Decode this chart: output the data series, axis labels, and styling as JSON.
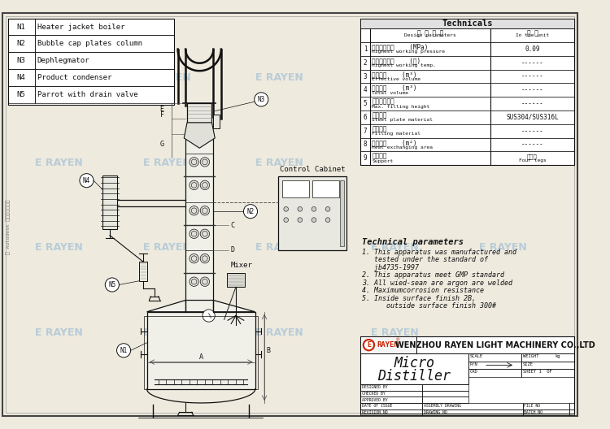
{
  "bg_color": "#eeeade",
  "line_color": "#111111",
  "wm_color": "#b8ccd8",
  "legend_items": [
    [
      "N1",
      "Heater jacket boiler"
    ],
    [
      "N2",
      "Bubble cap plates column"
    ],
    [
      "N3",
      "Dephlegmator"
    ],
    [
      "N4",
      "Product condenser"
    ],
    [
      "N5",
      "Parrot with drain valve"
    ]
  ],
  "technicals_title": "Technicals",
  "tech_rows": [
    [
      "1",
      "最高工作压力    (MPa)",
      "Highest working pressure",
      "0.09"
    ],
    [
      "2",
      "最高工作温度    (℃)",
      "Highest working temp.",
      "------"
    ],
    [
      "3",
      "有效容积    (m³)",
      "Effective volume",
      "------"
    ],
    [
      "4",
      "几何容积    (m³)",
      "Total volume",
      "------"
    ],
    [
      "5",
      "最大充填高度",
      "Max. filling height",
      "------"
    ],
    [
      "6",
      "钉板材质",
      "Steel plate material",
      "SUS304/SUS316L"
    ],
    [
      "7",
      "填充合金",
      "Filling material",
      "------"
    ],
    [
      "8",
      "换热面积    (m²)",
      "Heat exchanging area",
      "------"
    ],
    [
      "9",
      "支承方式",
      "Support",
      "四脚支\nFour legs"
    ]
  ],
  "tech_params": [
    "Technical parameters",
    "1. This apparatus was manufactured and",
    "   tested under the standard of",
    "   jb4735-1997",
    "2. This apparatus meet GMP standard",
    "3. All wied-sean are argon are welded",
    "4. Maximumcorrosion resistance",
    "5. Inside surface finish 2B,",
    "      outside surface finish 300#"
  ],
  "company_name": "WENZHOU RAYEN LIGHT MACHINERY CO.,LTD",
  "title1": "Micro",
  "title2": "Distiller",
  "control_cabinet": "Control Cabinet",
  "mixer": "Mixer",
  "autodesk_text": "由 Autodesk 教育版产品制作"
}
